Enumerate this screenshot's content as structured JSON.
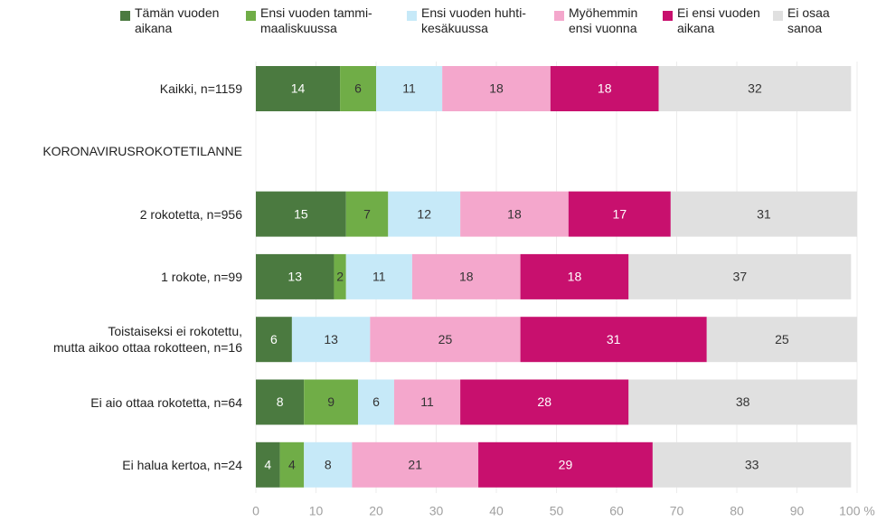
{
  "chart_data": {
    "type": "stacked_bar_horizontal",
    "categories": [
      "Kaikki, n=1159",
      "KORONAVIRUSROKOTETILANNE",
      "2 rokotetta, n=956",
      "1 rokote, n=99",
      "Toistaiseksi ei rokotettu,\nmutta aikoo ottaa rokotteen, n=16",
      "Ei aio ottaa rokotetta, n=64",
      "Ei halua kertoa, n=24"
    ],
    "series": [
      {
        "name": "Tämän vuoden\naikana",
        "color": "#4b7a40",
        "values": [
          14,
          null,
          15,
          13,
          6,
          8,
          4
        ]
      },
      {
        "name": "Ensi vuoden tammi-\nmaaliskuussa",
        "color": "#70ad47",
        "values": [
          6,
          null,
          7,
          2,
          null,
          9,
          4
        ]
      },
      {
        "name": "Ensi vuoden huhti-\nkesäkuussa",
        "color": "#c6e9f8",
        "values": [
          11,
          null,
          12,
          11,
          13,
          6,
          8
        ]
      },
      {
        "name": "Myöhemmin\nensi vuonna",
        "color": "#f4a7cc",
        "values": [
          18,
          null,
          18,
          18,
          25,
          11,
          21
        ]
      },
      {
        "name": "Ei ensi vuoden\naikana",
        "color": "#c8106e",
        "values": [
          18,
          null,
          17,
          18,
          31,
          28,
          29
        ]
      },
      {
        "name": "Ei osaa\nsanoa",
        "color": "#e0e0e0",
        "values": [
          32,
          null,
          31,
          37,
          25,
          38,
          33
        ]
      }
    ],
    "xlim": [
      0,
      100
    ],
    "xticks": [
      0,
      10,
      20,
      30,
      40,
      50,
      60,
      70,
      80,
      90,
      {
        "value": 100,
        "label": "100 %"
      }
    ],
    "grid": true,
    "legend": "top"
  }
}
